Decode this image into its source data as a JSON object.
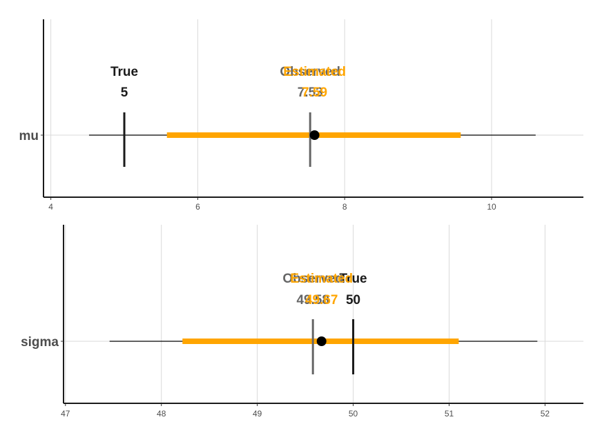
{
  "chart_data": [
    {
      "type": "interval",
      "parameter": "mu",
      "xlim": [
        3.9,
        11.25
      ],
      "xticks": [
        4,
        6,
        8,
        10
      ],
      "grid": true,
      "true_value": 5,
      "observed_value": 7.53,
      "estimated_value": 7.59,
      "inner_interval": [
        5.58,
        9.58
      ],
      "outer_interval": [
        4.52,
        10.6
      ],
      "labels": {
        "true": "True",
        "observed": "Observed",
        "estimated": "Estimated"
      },
      "value_labels": {
        "true": "5",
        "observed": "7.53",
        "estimated": "7.59"
      }
    },
    {
      "type": "interval",
      "parameter": "sigma",
      "xlim": [
        46.98,
        52.4
      ],
      "xticks": [
        47,
        48,
        49,
        50,
        51,
        52
      ],
      "grid": true,
      "true_value": 50,
      "observed_value": 49.58,
      "estimated_value": 49.67,
      "inner_interval": [
        48.22,
        51.1
      ],
      "outer_interval": [
        47.46,
        51.92
      ],
      "labels": {
        "true": "True",
        "observed": "Observed",
        "estimated": "Estimated"
      },
      "value_labels": {
        "true": "50",
        "observed": "49.58",
        "estimated": "49.67"
      }
    }
  ],
  "colors": {
    "interval": "#FFA500",
    "estimate_point": "#000000",
    "true_line": "#1a1a1a",
    "observed_line": "#666666",
    "estimated_text": "#FFA500",
    "grid": "#d9d9d9",
    "axis": "#1a1a1a"
  }
}
